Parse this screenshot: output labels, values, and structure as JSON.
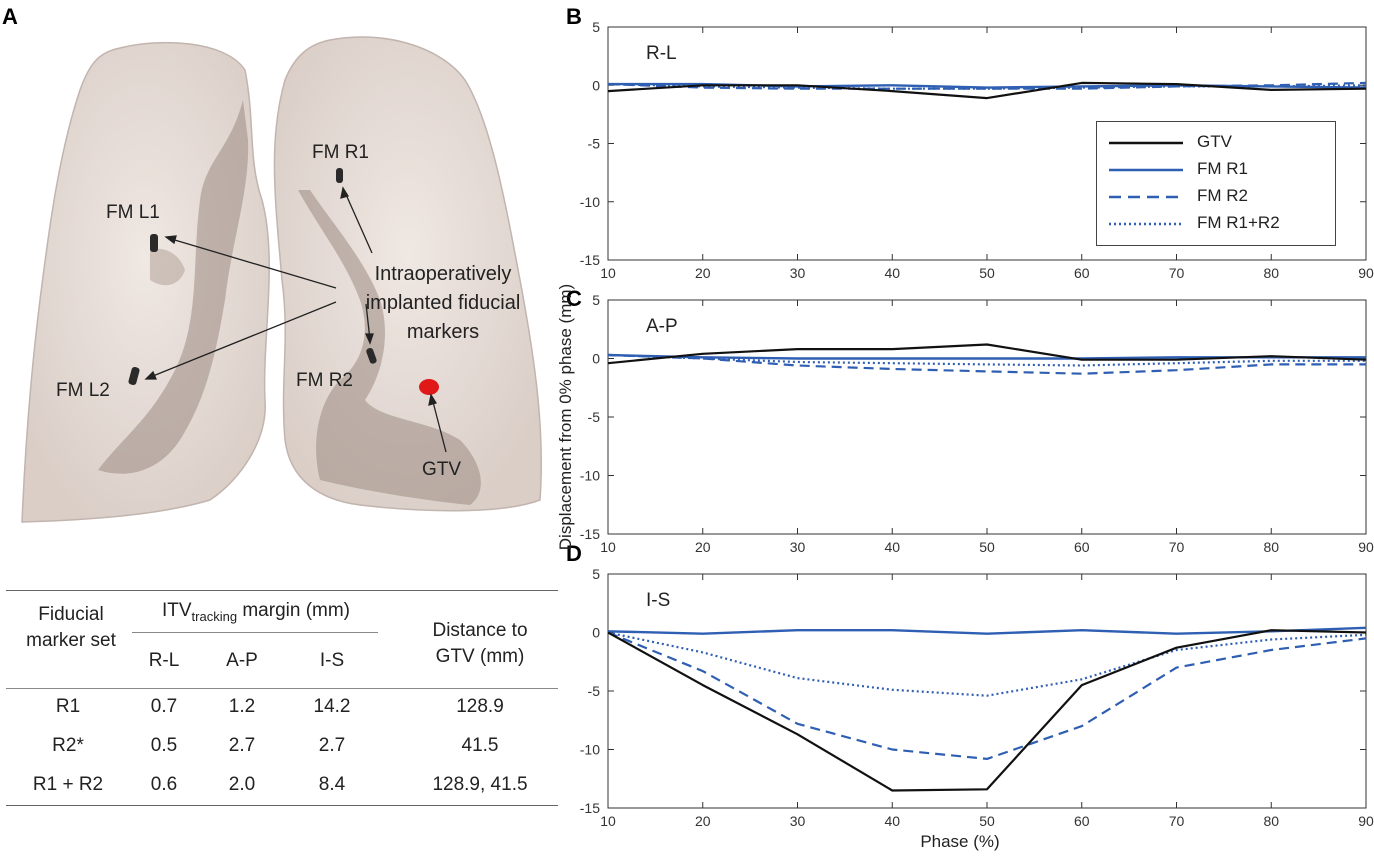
{
  "figure": {
    "panel_labels": [
      "A",
      "B",
      "C",
      "D"
    ]
  },
  "panel_a": {
    "annotations": {
      "fm_l1": "FM L1",
      "fm_l2": "FM L2",
      "fm_r1": "FM R1",
      "fm_r2": "FM R2",
      "gtv": "GTV",
      "callout_line1": "Intraoperatively",
      "callout_line2": "implanted fiducial",
      "callout_line3": "markers"
    },
    "colors": {
      "lung": "#e6dcd6",
      "lung_edge": "#b8aca6",
      "airway": "#8a7a70",
      "marker": "#2a2a2a",
      "gtv": "#e01818"
    }
  },
  "table": {
    "header_set_line1": "Fiducial",
    "header_set_line2": "marker set",
    "header_itv_prefix": "ITV",
    "header_itv_sub": "tracking",
    "header_itv_suffix": " margin (mm)",
    "header_dist_line1": "Distance to",
    "header_dist_line2": "GTV (mm)",
    "subheaders": [
      "R-L",
      "A-P",
      "I-S"
    ],
    "rows": [
      [
        "R1",
        "0.7",
        "1.2",
        "14.2",
        "128.9"
      ],
      [
        "R2*",
        "0.5",
        "2.7",
        "2.7",
        "41.5"
      ],
      [
        "R1 + R2",
        "0.6",
        "2.0",
        "8.4",
        "128.9, 41.5"
      ]
    ]
  },
  "shared_axis": {
    "ylabel": "Displacement from 0% phase (mm)",
    "xlabel": "Phase (%)"
  },
  "legend": [
    "GTV",
    "FM R1",
    "FM R2",
    "FM R1+R2"
  ],
  "colors": {
    "gtv": "#111111",
    "fm": "#2f5fb3"
  },
  "chart_data": [
    {
      "type": "line",
      "panel": "B",
      "title": "R-L",
      "x": [
        10,
        20,
        30,
        40,
        50,
        60,
        70,
        80,
        90
      ],
      "xlim": [
        10,
        90
      ],
      "ylim": [
        -15,
        5
      ],
      "xticks": [
        10,
        20,
        30,
        40,
        50,
        60,
        70,
        80,
        90
      ],
      "yticks": [
        5,
        0,
        -5,
        -10,
        -15
      ],
      "legend": "top-right",
      "series": [
        {
          "name": "GTV",
          "style": "solid-black",
          "values": [
            -0.5,
            0.0,
            0.0,
            -0.5,
            -1.1,
            0.2,
            0.1,
            -0.4,
            -0.3
          ]
        },
        {
          "name": "FM R1",
          "style": "solid-blue",
          "values": [
            0.1,
            0.1,
            -0.1,
            0.0,
            -0.2,
            -0.1,
            0.0,
            -0.1,
            -0.2
          ]
        },
        {
          "name": "FM R2",
          "style": "dashed-blue",
          "values": [
            0.1,
            -0.2,
            -0.3,
            -0.3,
            -0.3,
            -0.3,
            -0.1,
            0.0,
            0.2
          ]
        },
        {
          "name": "FM R1+R2",
          "style": "dotted-blue",
          "values": [
            0.1,
            -0.1,
            -0.2,
            -0.3,
            -0.3,
            -0.2,
            -0.1,
            -0.1,
            0.0
          ]
        }
      ]
    },
    {
      "type": "line",
      "panel": "C",
      "title": "A-P",
      "x": [
        10,
        20,
        30,
        40,
        50,
        60,
        70,
        80,
        90
      ],
      "xlim": [
        10,
        90
      ],
      "ylim": [
        -15,
        5
      ],
      "xticks": [
        10,
        20,
        30,
        40,
        50,
        60,
        70,
        80,
        90
      ],
      "yticks": [
        5,
        0,
        -5,
        -10,
        -15
      ],
      "series": [
        {
          "name": "GTV",
          "style": "solid-black",
          "values": [
            -0.4,
            0.4,
            0.8,
            0.8,
            1.2,
            -0.1,
            -0.1,
            0.2,
            -0.1
          ]
        },
        {
          "name": "FM R1",
          "style": "solid-blue",
          "values": [
            0.3,
            0.1,
            0.0,
            0.0,
            0.0,
            0.0,
            0.1,
            0.1,
            0.1
          ]
        },
        {
          "name": "FM R2",
          "style": "dashed-blue",
          "values": [
            0.3,
            0.0,
            -0.6,
            -0.9,
            -1.1,
            -1.3,
            -1.0,
            -0.5,
            -0.5
          ]
        },
        {
          "name": "FM R1+R2",
          "style": "dotted-blue",
          "values": [
            0.3,
            0.0,
            -0.3,
            -0.4,
            -0.5,
            -0.6,
            -0.4,
            -0.2,
            -0.2
          ]
        }
      ]
    },
    {
      "type": "line",
      "panel": "D",
      "title": "I-S",
      "x": [
        10,
        20,
        30,
        40,
        50,
        60,
        70,
        80,
        90
      ],
      "xlim": [
        10,
        90
      ],
      "ylim": [
        -15,
        5
      ],
      "xticks": [
        10,
        20,
        30,
        40,
        50,
        60,
        70,
        80,
        90
      ],
      "yticks": [
        5,
        0,
        -5,
        -10,
        -15
      ],
      "xlabel": "Phase (%)",
      "series": [
        {
          "name": "GTV",
          "style": "solid-black",
          "values": [
            0.0,
            -4.5,
            -8.7,
            -13.5,
            -13.4,
            -4.5,
            -1.3,
            0.2,
            0.0
          ]
        },
        {
          "name": "FM R1",
          "style": "solid-blue",
          "values": [
            0.1,
            -0.1,
            0.2,
            0.2,
            -0.1,
            0.2,
            -0.1,
            0.1,
            0.4
          ]
        },
        {
          "name": "FM R2",
          "style": "dashed-blue",
          "values": [
            0.0,
            -3.3,
            -7.8,
            -10.0,
            -10.8,
            -8.0,
            -3.0,
            -1.5,
            -0.5
          ]
        },
        {
          "name": "FM R1+R2",
          "style": "dotted-blue",
          "values": [
            0.0,
            -1.7,
            -3.9,
            -4.9,
            -5.4,
            -4.0,
            -1.5,
            -0.6,
            -0.2
          ]
        }
      ]
    }
  ]
}
